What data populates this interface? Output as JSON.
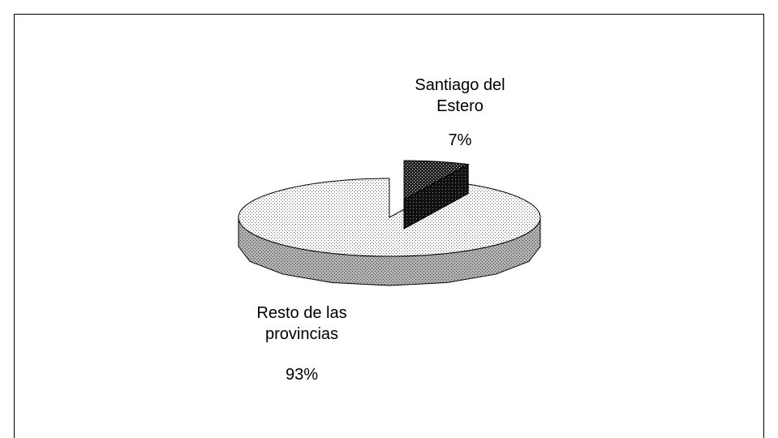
{
  "chart_data": {
    "type": "pie3d",
    "categories": [
      "Santiago del Estero",
      "Resto de las provincias"
    ],
    "values": [
      7,
      93
    ],
    "value_labels": [
      "7%",
      "93%"
    ],
    "colors": [
      "#333333",
      "#ffffff"
    ]
  }
}
